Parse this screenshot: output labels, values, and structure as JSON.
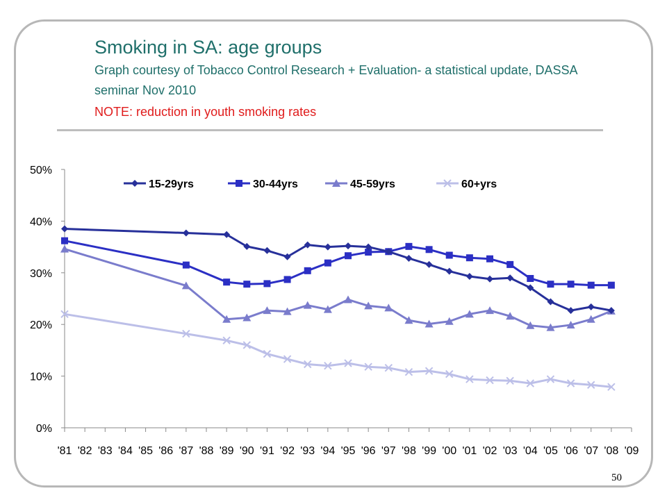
{
  "slide": {
    "title": "Smoking in SA: age groups",
    "subtitle": "Graph courtesy of Tobacco Control Research + Evaluation- a statistical update, DASSA seminar Nov 2010",
    "note": "NOTE: reduction in youth smoking rates",
    "page_number": "50"
  },
  "chart_data": {
    "type": "line",
    "x_ticks": [
      "'81",
      "'82",
      "'83",
      "'84",
      "'85",
      "'86",
      "'87",
      "'88",
      "'89",
      "'90",
      "'91",
      "'92",
      "'93",
      "'94",
      "'95",
      "'96",
      "'97",
      "'98",
      "'99",
      "'00",
      "'01",
      "'02",
      "'03",
      "'04",
      "'05",
      "'06",
      "'07",
      "'08",
      "'09"
    ],
    "y_ticks": [
      "0%",
      "10%",
      "20%",
      "30%",
      "40%",
      "50%"
    ],
    "ylim": [
      0,
      50
    ],
    "grid": false,
    "legend_position": "top",
    "series": [
      {
        "name": "15-29yrs",
        "color": "#27309a",
        "marker": "diamond",
        "x": [
          "'81",
          "'87",
          "'89",
          "'90",
          "'91",
          "'92",
          "'93",
          "'94",
          "'95",
          "'96",
          "'97",
          "'98",
          "'99",
          "'00",
          "'01",
          "'02",
          "'03",
          "'04",
          "'05",
          "'06",
          "'07",
          "'08"
        ],
        "values": [
          38.5,
          37.7,
          37.4,
          35.1,
          34.3,
          33.1,
          35.4,
          35.0,
          35.2,
          35.0,
          34.1,
          32.8,
          31.6,
          30.3,
          29.3,
          28.8,
          29.0,
          27.1,
          24.4,
          22.7,
          23.4,
          22.7
        ]
      },
      {
        "name": "30-44yrs",
        "color": "#2b2fc4",
        "marker": "square",
        "x": [
          "'81",
          "'87",
          "'89",
          "'90",
          "'91",
          "'92",
          "'93",
          "'94",
          "'95",
          "'96",
          "'97",
          "'98",
          "'99",
          "'00",
          "'01",
          "'02",
          "'03",
          "'04",
          "'05",
          "'06",
          "'07",
          "'08"
        ],
        "values": [
          36.2,
          31.5,
          28.2,
          27.8,
          27.9,
          28.7,
          30.4,
          31.9,
          33.3,
          34.0,
          34.1,
          35.1,
          34.5,
          33.4,
          32.9,
          32.7,
          31.6,
          28.9,
          27.8,
          27.8,
          27.6,
          27.6
        ]
      },
      {
        "name": "45-59yrs",
        "color": "#7a7ccc",
        "marker": "triangle",
        "x": [
          "'81",
          "'87",
          "'89",
          "'90",
          "'91",
          "'92",
          "'93",
          "'94",
          "'95",
          "'96",
          "'97",
          "'98",
          "'99",
          "'00",
          "'01",
          "'02",
          "'03",
          "'04",
          "'05",
          "'06",
          "'07",
          "'08"
        ],
        "values": [
          34.6,
          27.5,
          21.0,
          21.3,
          22.7,
          22.5,
          23.7,
          22.9,
          24.8,
          23.6,
          23.2,
          20.8,
          20.1,
          20.6,
          22.0,
          22.7,
          21.6,
          19.8,
          19.4,
          19.9,
          21.0,
          22.6
        ]
      },
      {
        "name": "60+yrs",
        "color": "#bcbfe8",
        "marker": "x",
        "x": [
          "'81",
          "'87",
          "'89",
          "'90",
          "'91",
          "'92",
          "'93",
          "'94",
          "'95",
          "'96",
          "'97",
          "'98",
          "'99",
          "'00",
          "'01",
          "'02",
          "'03",
          "'04",
          "'05",
          "'06",
          "'07",
          "'08"
        ],
        "values": [
          22.0,
          18.2,
          16.9,
          16.0,
          14.3,
          13.3,
          12.3,
          12.0,
          12.5,
          11.8,
          11.6,
          10.8,
          11.0,
          10.4,
          9.4,
          9.2,
          9.1,
          8.6,
          9.4,
          8.6,
          8.3,
          7.9
        ]
      }
    ]
  }
}
